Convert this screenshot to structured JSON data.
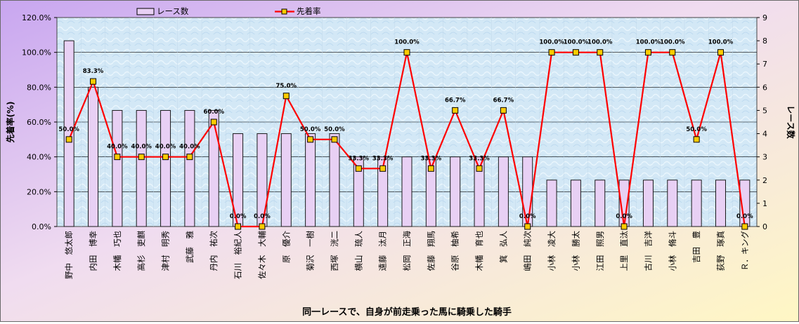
{
  "chart_data": {
    "type": "bar+line",
    "title": "同一レースで、自身が前走乗った馬に騎乗した騎手",
    "ylabel_left": "先着率(%)",
    "ylabel_right": "レース数",
    "legend": [
      {
        "name": "レース数",
        "kind": "bar"
      },
      {
        "name": "先着率",
        "kind": "line"
      }
    ],
    "legend_placement": "top",
    "grid": true,
    "y_left": {
      "min": 0,
      "max": 120,
      "step": 20,
      "tick_labels": [
        "0.0%",
        "20.0%",
        "40.0%",
        "60.0%",
        "80.0%",
        "100.0%",
        "120.0%"
      ]
    },
    "y_right": {
      "min": 0,
      "max": 9,
      "step": 1,
      "tick_labels": [
        "0",
        "1",
        "2",
        "3",
        "4",
        "5",
        "6",
        "7",
        "8",
        "9"
      ]
    },
    "categories": [
      "野中　悠太郎",
      "内田　博幸",
      "木幡　巧也",
      "高杉　吏麒",
      "津村　明秀",
      "武藤　雅",
      "丹内　祐次",
      "石川　裕紀人",
      "佐々木　大輔",
      "原　優介",
      "菊沢　一樹",
      "西塚　洸二",
      "横山　琉人",
      "遠藤　汰月",
      "松岡　正海",
      "佐藤　翔馬",
      "谷原　柚希",
      "木幡　育也",
      "箕　弘人",
      "嶋田　純次",
      "小林　凌大",
      "小林　勝太",
      "江田　照男",
      "上里　直汰",
      "古川　吉洋",
      "小林　脩斗",
      "吉田　豊",
      "荻野　琢真",
      "Ｒ．キング"
    ],
    "series": [
      {
        "name": "レース数",
        "type": "bar",
        "axis": "right",
        "color": "#e8d0f4",
        "values": [
          8,
          6,
          5,
          5,
          5,
          5,
          5,
          4,
          4,
          4,
          4,
          4,
          3,
          3,
          3,
          3,
          3,
          3,
          3,
          3,
          2,
          2,
          2,
          2,
          2,
          2,
          2,
          2,
          2
        ]
      },
      {
        "name": "先着率",
        "type": "line",
        "axis": "left",
        "color": "#ff0000",
        "marker_color": "#ffcc00",
        "values": [
          50.0,
          83.3,
          40.0,
          40.0,
          40.0,
          40.0,
          60.0,
          0.0,
          0.0,
          75.0,
          50.0,
          50.0,
          33.3,
          33.3,
          100.0,
          33.3,
          66.7,
          33.3,
          66.7,
          0.0,
          100.0,
          100.0,
          100.0,
          0.0,
          100.0,
          100.0,
          50.0,
          100.0,
          0.0
        ],
        "data_labels": [
          "50.0%",
          "83.3%",
          "40.0%",
          "40.0%",
          "40.0%",
          "40.0%",
          "60.0%",
          "0.0%",
          "0.0%",
          "75.0%",
          "50.0%",
          "50.0%",
          "33.3%",
          "33.3%",
          "100.0%",
          "33.3%",
          "66.7%",
          "33.3%",
          "66.7%",
          "0.0%",
          "100.0%",
          "100.0%",
          "100.0%",
          "0.0%",
          "100.0%",
          "100.0%",
          "50.0%",
          "100.0%",
          "0.0%"
        ]
      }
    ]
  },
  "colors": {
    "background_left": "#c9a8f0",
    "background_right": "#fff6c8",
    "plot_fill": "#d6ecf8",
    "grid": "#000000",
    "bar_fill": "#e8d0f4",
    "bar_stroke": "#1a1a1a",
    "line": "#ff0000",
    "marker": "#ffcc00"
  }
}
